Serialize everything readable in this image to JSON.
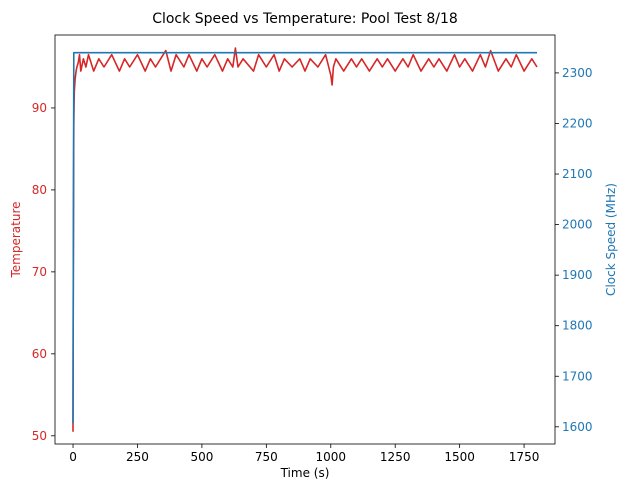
{
  "chart_data": {
    "type": "line",
    "title": "Clock Speed vs Temperature: Pool Test 8/18",
    "xlabel": "Time (s)",
    "xlim": [
      -70,
      1870
    ],
    "xticks": [
      0,
      250,
      500,
      750,
      1000,
      1250,
      1500,
      1750
    ],
    "grid": false,
    "y_left": {
      "label": "Temperature",
      "ylim": [
        49,
        98.9
      ],
      "ticks": [
        50,
        60,
        70,
        80,
        90
      ],
      "color": "#d62728"
    },
    "y_right": {
      "label": "Clock Speed (MHz)",
      "ylim": [
        1566,
        2375
      ],
      "ticks": [
        1600,
        1700,
        1800,
        1900,
        2000,
        2100,
        2200,
        2300
      ],
      "color": "#1f77b4"
    },
    "series": [
      {
        "axis": "left",
        "color": "#d62728",
        "x": [
          0,
          1,
          2,
          3,
          4,
          5,
          8,
          12,
          15,
          20,
          25,
          30,
          40,
          50,
          60,
          80,
          100,
          120,
          150,
          180,
          200,
          220,
          250,
          280,
          300,
          320,
          350,
          360,
          380,
          400,
          430,
          450,
          480,
          500,
          520,
          550,
          580,
          600,
          620,
          630,
          640,
          660,
          700,
          720,
          750,
          780,
          800,
          820,
          850,
          880,
          900,
          920,
          950,
          980,
          1000,
          1005,
          1010,
          1020,
          1050,
          1080,
          1100,
          1120,
          1150,
          1180,
          1200,
          1220,
          1250,
          1280,
          1300,
          1320,
          1350,
          1380,
          1400,
          1420,
          1450,
          1480,
          1500,
          1520,
          1550,
          1580,
          1600,
          1620,
          1650,
          1680,
          1700,
          1720,
          1750,
          1780,
          1800
        ],
        "values": [
          50.5,
          70,
          82,
          88,
          90.5,
          92,
          93.5,
          94.5,
          95,
          95.5,
          96.5,
          94.5,
          96,
          95,
          96.5,
          94.5,
          96,
          95,
          96.5,
          94.5,
          96,
          95,
          96.5,
          94.5,
          96,
          95,
          96.5,
          97,
          94.5,
          96.5,
          95,
          96.5,
          94.5,
          96,
          95,
          96.5,
          94.5,
          96,
          95,
          97.3,
          95,
          96,
          94.5,
          96.5,
          95,
          96.5,
          94.5,
          96,
          95,
          96,
          94.5,
          96,
          95,
          96.5,
          94,
          92.8,
          95,
          96,
          94.5,
          96,
          95,
          96,
          94.5,
          96,
          95,
          96,
          94.5,
          96,
          95,
          96.5,
          94.5,
          96,
          95,
          96,
          94.5,
          96.5,
          95,
          96,
          94.5,
          96.5,
          95,
          97,
          94.5,
          96,
          95,
          96.5,
          94.5,
          96,
          95
        ]
      },
      {
        "axis": "right",
        "color": "#1f77b4",
        "x": [
          0,
          3,
          1800
        ],
        "values": [
          1607,
          2340,
          2340
        ]
      }
    ]
  }
}
